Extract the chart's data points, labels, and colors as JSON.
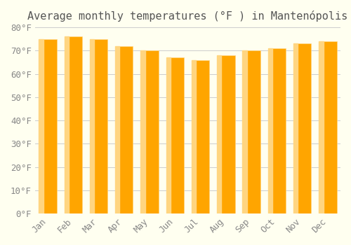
{
  "title": "Average monthly temperatures (°F ) in Mantenópolis",
  "months": [
    "Jan",
    "Feb",
    "Mar",
    "Apr",
    "May",
    "Jun",
    "Jul",
    "Aug",
    "Sep",
    "Oct",
    "Nov",
    "Dec"
  ],
  "values": [
    75,
    76,
    75,
    72,
    70,
    67,
    66,
    68,
    70,
    71,
    73,
    74
  ],
  "bar_color_main": "#FFA500",
  "bar_color_light": "#FFD580",
  "ylim": [
    0,
    80
  ],
  "yticks": [
    0,
    10,
    20,
    30,
    40,
    50,
    60,
    70,
    80
  ],
  "ytick_labels": [
    "0°F",
    "10°F",
    "20°F",
    "30°F",
    "40°F",
    "50°F",
    "60°F",
    "70°F",
    "80°F"
  ],
  "background_color": "#FFFFF0",
  "grid_color": "#CCCCCC",
  "title_fontsize": 11,
  "tick_fontsize": 9
}
